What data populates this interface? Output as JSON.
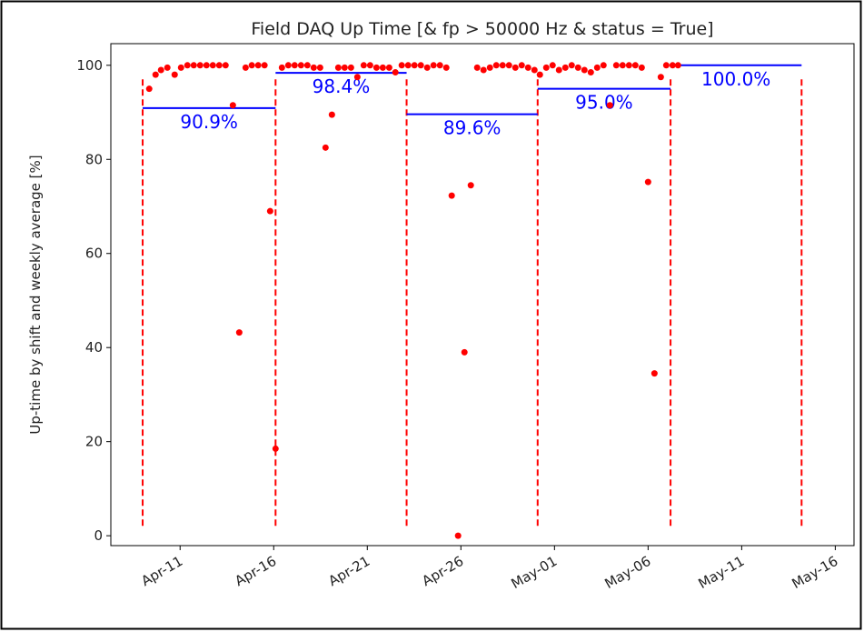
{
  "chart_data": {
    "type": "scatter",
    "title": "Field DAQ Up Time [& fp > 50000 Hz & status = True]",
    "ylabel": "Up-time by shift and weekly average [%]",
    "color": "red",
    "x": [
      9.35,
      9.69,
      9.98,
      10.32,
      10.71,
      11.05,
      11.39,
      11.73,
      12.07,
      12.41,
      12.75,
      13.09,
      13.43,
      13.82,
      14.16,
      14.5,
      14.83,
      15.17,
      15.51,
      15.81,
      16.1,
      16.44,
      16.78,
      17.12,
      17.46,
      17.8,
      18.14,
      18.48,
      18.77,
      19.11,
      19.45,
      19.79,
      20.13,
      20.47,
      20.81,
      21.15,
      21.49,
      21.83,
      22.17,
      22.5,
      22.84,
      23.18,
      23.52,
      23.86,
      24.2,
      24.54,
      24.88,
      25.22,
      25.51,
      25.85,
      26.19,
      26.53,
      26.87,
      27.21,
      27.55,
      27.89,
      28.23,
      28.57,
      28.91,
      29.25,
      29.59,
      29.93,
      30.22,
      30.56,
      30.9,
      31.24,
      31.58,
      31.92,
      32.26,
      32.6,
      32.94,
      33.28,
      33.62,
      33.96,
      34.3,
      34.64,
      34.98,
      35.32,
      35.66,
      36.0,
      36.34,
      36.68,
      36.97,
      37.31,
      37.6
    ],
    "values": [
      95,
      98,
      99,
      99.5,
      98,
      99.5,
      100,
      100,
      100,
      100,
      100,
      100,
      100,
      91.5,
      43.2,
      99.5,
      100,
      100,
      100,
      69,
      18.5,
      99.5,
      100,
      100,
      100,
      100,
      99.5,
      99.5,
      82.5,
      89.5,
      99.5,
      99.5,
      99.5,
      97.5,
      100,
      100,
      99.5,
      99.5,
      99.5,
      98.5,
      100,
      100,
      100,
      100,
      99.5,
      100,
      100,
      99.5,
      72.3,
      0,
      39,
      74.5,
      99.5,
      99,
      99.5,
      100,
      100,
      100,
      99.5,
      100,
      99.5,
      99,
      98,
      99.5,
      100,
      99,
      99.5,
      100,
      99.5,
      99,
      98.5,
      99.5,
      100,
      91.5,
      100,
      100,
      100,
      100,
      99.5,
      75.2,
      34.5,
      97.5,
      100,
      100,
      100
    ],
    "xlim": [
      7.3,
      47.0
    ],
    "ylim": [
      -2.1,
      104.6
    ],
    "yticks": [
      0,
      20,
      40,
      60,
      80,
      100
    ],
    "xticks": [
      {
        "value": 11,
        "label": "Apr-11"
      },
      {
        "value": 16,
        "label": "Apr-16"
      },
      {
        "value": 21,
        "label": "Apr-21"
      },
      {
        "value": 26,
        "label": "Apr-26"
      },
      {
        "value": 31,
        "label": "May-01"
      },
      {
        "value": 36,
        "label": "May-06"
      },
      {
        "value": 41,
        "label": "May-11"
      },
      {
        "value": 46,
        "label": "May-16"
      }
    ],
    "boundaries": {
      "x": [
        9.0,
        16.1,
        23.1,
        30.1,
        37.2,
        44.2
      ],
      "ymin": 2.1,
      "ymax": 97.5,
      "color": "red"
    },
    "weekly": {
      "color": "blue",
      "values": [
        90.9,
        98.4,
        89.6,
        95.0,
        100.0
      ],
      "value_labels": [
        "90.9%",
        "98.4%",
        "89.6%",
        "95.0%",
        "100.0%"
      ]
    }
  }
}
